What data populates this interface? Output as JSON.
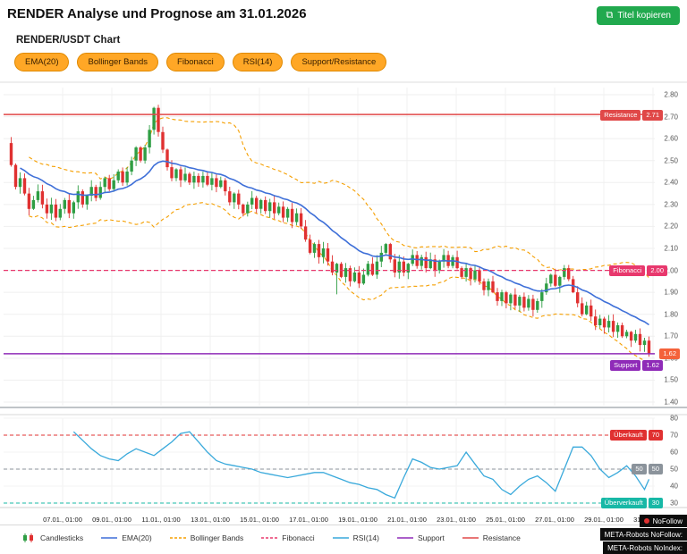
{
  "header": {
    "title": "RENDER Analyse und Prognose am 31.01.2026",
    "copy_button_label": "Titel kopieren"
  },
  "chart_heading": "RENDER/USDT Chart",
  "indicator_buttons": [
    {
      "label": "EMA(20)"
    },
    {
      "label": "Bollinger Bands"
    },
    {
      "label": "Fibonacci"
    },
    {
      "label": "RSI(14)"
    },
    {
      "label": "Support/Resistance"
    }
  ],
  "colors": {
    "accent_green": "#21A94E",
    "pill_bg": "#FFA726",
    "pill_border": "#E08900",
    "candle_up": "#2F9E44",
    "candle_down": "#E03131",
    "ema": "#3E6FD8",
    "bollinger": "#F59F00",
    "fibonacci": "#E8386D",
    "support": "#8F2BB8",
    "resistance": "#E04848",
    "rsi": "#39A9DB",
    "overbought": "#E03131",
    "midline": "#8B939B",
    "oversold": "#17B8A6",
    "last_price_badge": "#F4623A"
  },
  "badges": {
    "resistance_label": "Resistance",
    "resistance_value": "2.71",
    "fibonacci_label": "Fibonacci",
    "fibonacci_value": "2.00",
    "support_label": "Support",
    "support_value": "1.62",
    "last_price": "1.62",
    "overbought_label": "Überkauft",
    "overbought_value": "70",
    "mid_label": "50",
    "mid_value": "50",
    "oversold_label": "Überverkauft",
    "oversold_value": "30"
  },
  "legend": [
    {
      "label": "Candlesticks",
      "icon": "candles"
    },
    {
      "label": "EMA(20)",
      "icon": "line",
      "color_key": "ema"
    },
    {
      "label": "Bollinger Bands",
      "icon": "dashed",
      "color_key": "bollinger"
    },
    {
      "label": "Fibonacci",
      "icon": "dashed",
      "color_key": "fibonacci"
    },
    {
      "label": "RSI(14)",
      "icon": "line",
      "color_key": "rsi"
    },
    {
      "label": "Support",
      "icon": "line",
      "color_key": "support"
    },
    {
      "label": "Resistance",
      "icon": "line",
      "color_key": "resistance"
    }
  ],
  "overlays": [
    "NoFollow",
    "META-Robots NoFollow:",
    "META-Robots NoIndex:"
  ],
  "chart_data": {
    "type": "candlestick",
    "title": "RENDER/USDT Chart",
    "ylim": [
      1.4,
      2.8
    ],
    "yticks": [
      "2.80",
      "2.70",
      "2.60",
      "2.50",
      "2.40",
      "2.30",
      "2.20",
      "2.10",
      "2.00",
      "1.90",
      "1.80",
      "1.70",
      "1.60",
      "1.50",
      "1.40"
    ],
    "x_labels": [
      "07.01., 01:00",
      "09.01., 01:00",
      "11.01., 01:00",
      "13.01., 01:00",
      "15.01., 01:00",
      "17.01., 01:00",
      "19.01., 01:00",
      "21.01., 01:00",
      "23.01., 01:00",
      "25.01., 01:00",
      "27.01., 01:00",
      "29.01., 01:00",
      "31.01., 01:00"
    ],
    "first_open": 2.58,
    "closes": [
      2.48,
      2.38,
      2.42,
      2.35,
      2.28,
      2.32,
      2.36,
      2.3,
      2.26,
      2.3,
      2.24,
      2.28,
      2.32,
      2.26,
      2.31,
      2.36,
      2.3,
      2.34,
      2.38,
      2.33,
      2.38,
      2.42,
      2.37,
      2.41,
      2.45,
      2.4,
      2.45,
      2.5,
      2.56,
      2.5,
      2.56,
      2.64,
      2.74,
      2.63,
      2.55,
      2.47,
      2.42,
      2.46,
      2.41,
      2.44,
      2.4,
      2.43,
      2.4,
      2.43,
      2.39,
      2.42,
      2.38,
      2.41,
      2.36,
      2.31,
      2.35,
      2.3,
      2.26,
      2.3,
      2.33,
      2.28,
      2.32,
      2.27,
      2.31,
      2.26,
      2.29,
      2.24,
      2.28,
      2.22,
      2.26,
      2.2,
      2.14,
      2.08,
      2.12,
      2.06,
      2.1,
      2.04,
      1.99,
      2.03,
      1.97,
      2.01,
      1.95,
      1.99,
      1.94,
      1.98,
      2.03,
      1.98,
      2.04,
      2.08,
      2.12,
      2.05,
      1.99,
      2.04,
      1.99,
      2.03,
      2.07,
      2.02,
      2.06,
      2.01,
      2.05,
      2.0,
      2.04,
      2.07,
      2.02,
      2.06,
      2.01,
      1.97,
      2.01,
      1.96,
      2.0,
      1.95,
      1.91,
      1.95,
      1.9,
      1.86,
      1.9,
      1.85,
      1.89,
      1.84,
      1.88,
      1.83,
      1.87,
      1.82,
      1.86,
      1.9,
      1.94,
      1.98,
      1.93,
      1.97,
      2.01,
      1.96,
      1.9,
      1.85,
      1.8,
      1.84,
      1.79,
      1.75,
      1.78,
      1.74,
      1.77,
      1.72,
      1.75,
      1.7,
      1.72,
      1.68,
      1.71,
      1.66,
      1.68,
      1.62
    ],
    "wick_overrides": {
      "73": 0.08
    },
    "levels": {
      "resistance": 2.71,
      "fibonacci": 2.0,
      "support": 1.62,
      "last_price": 1.62
    },
    "indicators": {
      "ema_period": 20,
      "bollinger_period": 20,
      "bollinger_stddev": 2,
      "rsi_period": 14
    },
    "rsi_panel": {
      "yticks": [
        "80",
        "70",
        "60",
        "50",
        "40",
        "30"
      ],
      "levels": {
        "overbought": 70,
        "middle": 50,
        "oversold": 30
      },
      "start_index": 14,
      "step": 2,
      "values": [
        72,
        67,
        62,
        58,
        56,
        55,
        59,
        62,
        60,
        58,
        62,
        66,
        71,
        72,
        66,
        60,
        55,
        53,
        52,
        51,
        50,
        48,
        47,
        46,
        45,
        46,
        47,
        48,
        48,
        46,
        44,
        42,
        41,
        39,
        38,
        35,
        33,
        45,
        56,
        54,
        51,
        50,
        51,
        52,
        60,
        53,
        46,
        44,
        38,
        35,
        40,
        44,
        46,
        42,
        37,
        50,
        63,
        63,
        58,
        50,
        45,
        48,
        52,
        46,
        38,
        44
      ]
    }
  }
}
